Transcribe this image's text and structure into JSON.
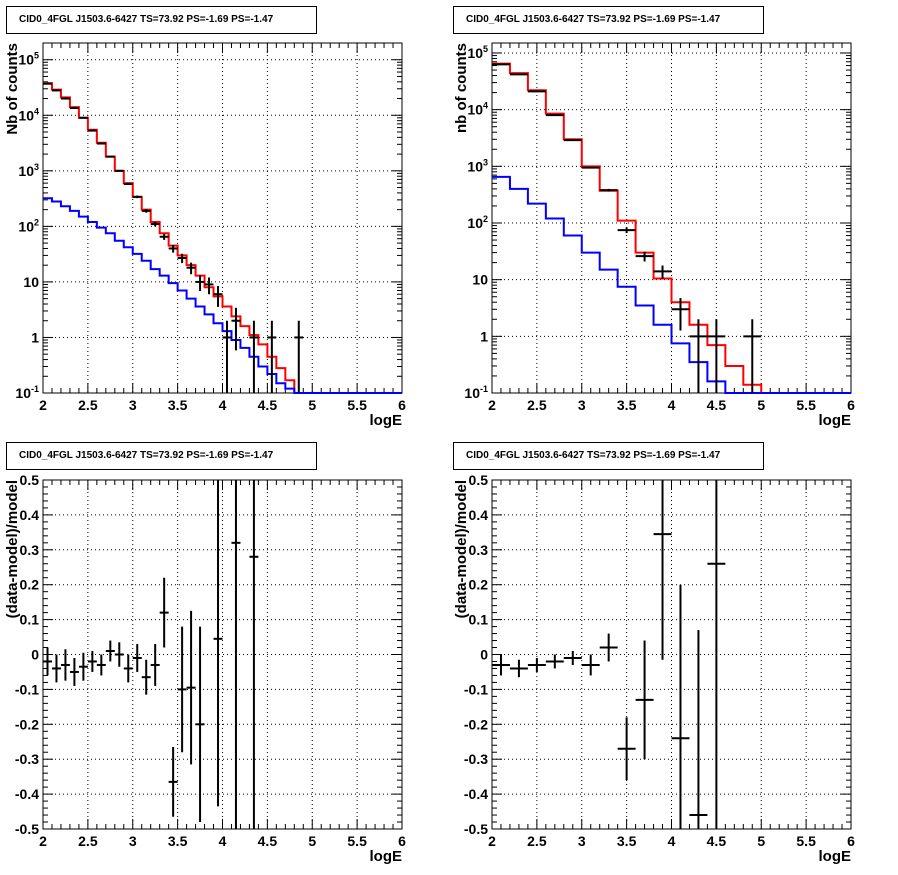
{
  "panels": [
    {
      "title": "CID0_4FGL J1503.6-6427 TS=73.92 PS=-1.69 PS=-1.47",
      "chart_data": {
        "type": "line",
        "log_y": true,
        "xlabel": "logE",
        "ylabel": "Nb of counts",
        "xlim": [
          2,
          6
        ],
        "ylim": [
          0.1,
          200000
        ],
        "x_ticks": [
          "2",
          "2.5",
          "3",
          "3.5",
          "4",
          "4.5",
          "5",
          "5.5",
          "6"
        ],
        "y_ticks": [
          "10^-1",
          "1",
          "10",
          "10^2",
          "10^3",
          "10^4",
          "10^5"
        ],
        "grid": true,
        "bin_edges": [
          2.0,
          2.1,
          2.2,
          2.3,
          2.4,
          2.5,
          2.6,
          2.7,
          2.8,
          2.9,
          3.0,
          3.1,
          3.2,
          3.3,
          3.4,
          3.5,
          3.6,
          3.7,
          3.8,
          3.9,
          4.0,
          4.1,
          4.2,
          4.3,
          4.4,
          4.5,
          4.6,
          4.7,
          4.8,
          4.9,
          5.0,
          5.1,
          5.2,
          5.3,
          5.4,
          5.5,
          5.6,
          5.7,
          5.8,
          5.9,
          6.0
        ],
        "series": [
          {
            "color": "#ff0000",
            "values": [
              38000,
              29000,
              21000,
              14000,
              9000,
              5500,
              3200,
              1800,
              1000,
              600,
              340,
              200,
              120,
              75,
              45,
              30,
              20,
              13,
              8,
              5.5,
              3.6,
              2.4,
              1.6,
              1.1,
              0.75,
              0.45,
              0.28,
              0.17,
              0.1,
              0.1,
              0.1,
              0.1,
              0.1,
              0.1,
              0.1,
              0.1,
              0.1,
              0.1,
              0.1,
              0.1
            ]
          },
          {
            "color": "#0000ff",
            "values": [
              320,
              280,
              230,
              190,
              150,
              120,
              95,
              75,
              55,
              42,
              32,
              24,
              17,
              13,
              9.5,
              7,
              5,
              3.6,
              2.6,
              1.8,
              1.3,
              0.9,
              0.65,
              0.45,
              0.3,
              0.22,
              0.15,
              0.12,
              0.1,
              0.1,
              0.1,
              0.1,
              0.1,
              0.1,
              0.1,
              0.1,
              0.1,
              0.1,
              0.1,
              0.1
            ]
          }
        ],
        "data_points": [
          {
            "x": 2.05,
            "y": 37000
          },
          {
            "x": 2.15,
            "y": 28000
          },
          {
            "x": 2.25,
            "y": 20000
          },
          {
            "x": 2.35,
            "y": 13500
          },
          {
            "x": 2.45,
            "y": 9000
          },
          {
            "x": 2.55,
            "y": 5300
          },
          {
            "x": 2.65,
            "y": 3100
          },
          {
            "x": 2.75,
            "y": 1800
          },
          {
            "x": 2.85,
            "y": 1000
          },
          {
            "x": 2.95,
            "y": 580
          },
          {
            "x": 3.05,
            "y": 340
          },
          {
            "x": 3.15,
            "y": 190
          },
          {
            "x": 3.25,
            "y": 110
          },
          {
            "x": 3.35,
            "y": 65
          },
          {
            "x": 3.45,
            "y": 40
          },
          {
            "x": 3.55,
            "y": 27
          },
          {
            "x": 3.65,
            "y": 18
          },
          {
            "x": 3.75,
            "y": 10
          },
          {
            "x": 3.85,
            "y": 9
          },
          {
            "x": 3.95,
            "y": 6
          },
          {
            "x": 4.05,
            "y": 1
          },
          {
            "x": 4.15,
            "y": 2
          },
          {
            "x": 4.35,
            "y": 1
          },
          {
            "x": 4.55,
            "y": 1
          },
          {
            "x": 4.85,
            "y": 1
          }
        ]
      }
    },
    {
      "title": "CID0_4FGL J1503.6-6427 TS=73.92 PS=-1.69 PS=-1.47",
      "chart_data": {
        "type": "line",
        "log_y": true,
        "xlabel": "logE",
        "ylabel": "nb of counts",
        "xlim": [
          2,
          6
        ],
        "ylim": [
          0.1,
          150000
        ],
        "x_ticks": [
          "2",
          "2.5",
          "3",
          "3.5",
          "4",
          "4.5",
          "5",
          "5.5",
          "6"
        ],
        "y_ticks": [
          "10^-1",
          "1",
          "10",
          "10^2",
          "10^3",
          "10^4",
          "10^5"
        ],
        "grid": true,
        "bin_edges": [
          2.0,
          2.2,
          2.4,
          2.6,
          2.8,
          3.0,
          3.2,
          3.4,
          3.6,
          3.8,
          4.0,
          4.2,
          4.4,
          4.6,
          4.8,
          5.0,
          5.2,
          5.4,
          5.6,
          5.8,
          6.0
        ],
        "series": [
          {
            "color": "#ff0000",
            "values": [
              65000,
              44000,
              22000,
              8500,
              3000,
              1000,
              370,
              110,
              30,
              10.5,
              4,
              1.6,
              0.7,
              0.3,
              0.14,
              0.1,
              0.1,
              0.1,
              0.1,
              0.1
            ]
          },
          {
            "color": "#0000ff",
            "values": [
              650,
              400,
              220,
              120,
              60,
              30,
              15,
              7.5,
              3.5,
              1.6,
              0.75,
              0.35,
              0.16,
              0.1,
              0.1,
              0.1,
              0.1,
              0.1,
              0.1,
              0.1
            ]
          }
        ],
        "data_points": [
          {
            "x": 2.1,
            "y": 63000
          },
          {
            "x": 2.3,
            "y": 42000
          },
          {
            "x": 2.5,
            "y": 21000
          },
          {
            "x": 2.7,
            "y": 8000
          },
          {
            "x": 2.9,
            "y": 2900
          },
          {
            "x": 3.1,
            "y": 950
          },
          {
            "x": 3.3,
            "y": 380
          },
          {
            "x": 3.5,
            "y": 75
          },
          {
            "x": 3.7,
            "y": 26
          },
          {
            "x": 3.9,
            "y": 14
          },
          {
            "x": 4.1,
            "y": 3
          },
          {
            "x": 4.3,
            "y": 1
          },
          {
            "x": 4.5,
            "y": 1
          },
          {
            "x": 4.9,
            "y": 1
          }
        ]
      }
    },
    {
      "title": "CID0_4FGL J1503.6-6427 TS=73.92 PS=-1.69 PS=-1.47",
      "chart_data": {
        "type": "scatter",
        "log_y": false,
        "xlabel": "logE",
        "ylabel": "(data-model)/model",
        "xlim": [
          2,
          6
        ],
        "ylim": [
          -0.5,
          0.5
        ],
        "x_ticks": [
          "2",
          "2.5",
          "3",
          "3.5",
          "4",
          "4.5",
          "5",
          "5.5",
          "6"
        ],
        "y_ticks": [
          "-0.5",
          "-0.4",
          "-0.3",
          "-0.2",
          "-0.1",
          "0",
          "0.1",
          "0.2",
          "0.3",
          "0.4",
          "0.5"
        ],
        "grid": true,
        "x_half_width": 0.05,
        "points": [
          {
            "x": 2.05,
            "y": -0.02,
            "err": 0.04
          },
          {
            "x": 2.15,
            "y": -0.04,
            "err": 0.04
          },
          {
            "x": 2.25,
            "y": -0.03,
            "err": 0.045
          },
          {
            "x": 2.35,
            "y": -0.05,
            "err": 0.04
          },
          {
            "x": 2.45,
            "y": -0.035,
            "err": 0.04
          },
          {
            "x": 2.55,
            "y": -0.02,
            "err": 0.03
          },
          {
            "x": 2.65,
            "y": -0.03,
            "err": 0.03
          },
          {
            "x": 2.75,
            "y": 0.01,
            "err": 0.03
          },
          {
            "x": 2.85,
            "y": 0.0,
            "err": 0.035
          },
          {
            "x": 2.95,
            "y": -0.04,
            "err": 0.04
          },
          {
            "x": 3.05,
            "y": -0.01,
            "err": 0.04
          },
          {
            "x": 3.15,
            "y": -0.065,
            "err": 0.05
          },
          {
            "x": 3.25,
            "y": -0.03,
            "err": 0.06
          },
          {
            "x": 3.35,
            "y": 0.12,
            "err": 0.1
          },
          {
            "x": 3.45,
            "y": -0.365,
            "err": 0.1
          },
          {
            "x": 3.55,
            "y": -0.1,
            "err": 0.18
          },
          {
            "x": 3.65,
            "y": -0.095,
            "err": 0.22
          },
          {
            "x": 3.75,
            "y": -0.2,
            "err": 0.28
          },
          {
            "x": 3.95,
            "y": 0.045,
            "err": 0.48
          },
          {
            "x": 4.15,
            "y": 0.32,
            "err": 0.9
          },
          {
            "x": 4.35,
            "y": 0.28,
            "err": 0.9
          }
        ]
      }
    },
    {
      "title": "CID0_4FGL J1503.6-6427 TS=73.92 PS=-1.69 PS=-1.47",
      "chart_data": {
        "type": "scatter",
        "log_y": false,
        "xlabel": "logE",
        "ylabel": "(data-model)/model",
        "xlim": [
          2,
          6
        ],
        "ylim": [
          -0.5,
          0.5
        ],
        "x_ticks": [
          "2",
          "2.5",
          "3",
          "3.5",
          "4",
          "4.5",
          "5",
          "5.5",
          "6"
        ],
        "y_ticks": [
          "-0.5",
          "-0.4",
          "-0.3",
          "-0.2",
          "-0.1",
          "0",
          "0.1",
          "0.2",
          "0.3",
          "0.4",
          "0.5"
        ],
        "grid": true,
        "x_half_width": 0.1,
        "points": [
          {
            "x": 2.1,
            "y": -0.03,
            "err": 0.03
          },
          {
            "x": 2.3,
            "y": -0.04,
            "err": 0.025
          },
          {
            "x": 2.5,
            "y": -0.03,
            "err": 0.02
          },
          {
            "x": 2.7,
            "y": -0.02,
            "err": 0.02
          },
          {
            "x": 2.9,
            "y": -0.01,
            "err": 0.02
          },
          {
            "x": 3.1,
            "y": -0.03,
            "err": 0.03
          },
          {
            "x": 3.3,
            "y": 0.02,
            "err": 0.04
          },
          {
            "x": 3.5,
            "y": -0.27,
            "err": 0.09
          },
          {
            "x": 3.7,
            "y": -0.13,
            "err": 0.17
          },
          {
            "x": 3.9,
            "y": 0.345,
            "err": 0.36
          },
          {
            "x": 4.1,
            "y": -0.24,
            "err": 0.44
          },
          {
            "x": 4.3,
            "y": -0.46,
            "err": 0.53
          },
          {
            "x": 4.5,
            "y": 0.26,
            "err": 0.9
          }
        ]
      }
    }
  ]
}
